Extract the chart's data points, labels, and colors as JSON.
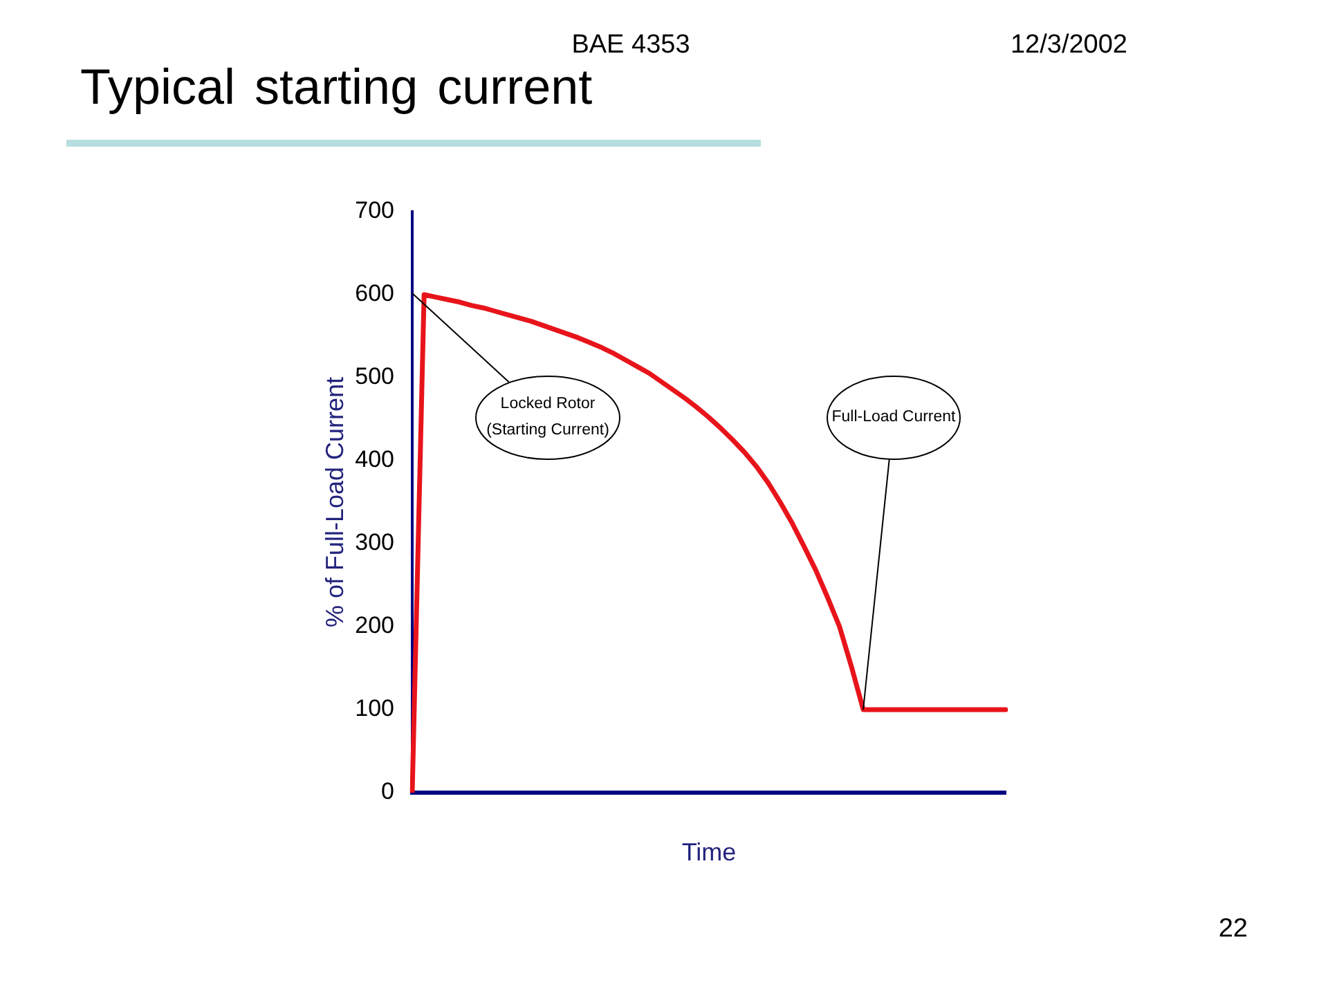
{
  "chart_data": {
    "type": "line",
    "title": "Typical starting current",
    "xlabel": "Time",
    "ylabel": "% of Full-Load Current",
    "categories": [
      null,
      null,
      null,
      null,
      null,
      null,
      null,
      null,
      null,
      null,
      null,
      null,
      null,
      null,
      null,
      null,
      null,
      null,
      null,
      null,
      null,
      null,
      null,
      null,
      null,
      null,
      null,
      null,
      null,
      null,
      null,
      null,
      null,
      null,
      null,
      null,
      null,
      null,
      null,
      null,
      null,
      null,
      null,
      null,
      null,
      null,
      null,
      null,
      null,
      null,
      null
    ],
    "values": [
      0,
      600,
      597,
      594,
      591,
      587,
      584,
      580,
      576,
      572,
      568,
      563,
      558,
      553,
      548,
      542,
      536,
      529,
      521,
      513,
      505,
      495,
      485,
      475,
      464,
      452,
      439,
      425,
      410,
      393,
      373,
      350,
      325,
      297,
      268,
      235,
      200,
      152,
      100,
      100,
      100,
      100,
      100,
      100,
      100,
      100,
      100,
      100,
      100,
      100,
      100
    ],
    "color": "#e8141b",
    "ylim": [
      0,
      700
    ],
    "yticks": [
      0,
      100,
      200,
      300,
      400,
      500,
      600,
      700
    ],
    "tick_labels": "y",
    "grid": false,
    "annotations": [
      "BAE 4353",
      "12/3/2002",
      "Locked Rotor\n(Starting Current)",
      "Full-Load Current",
      "22"
    ]
  }
}
